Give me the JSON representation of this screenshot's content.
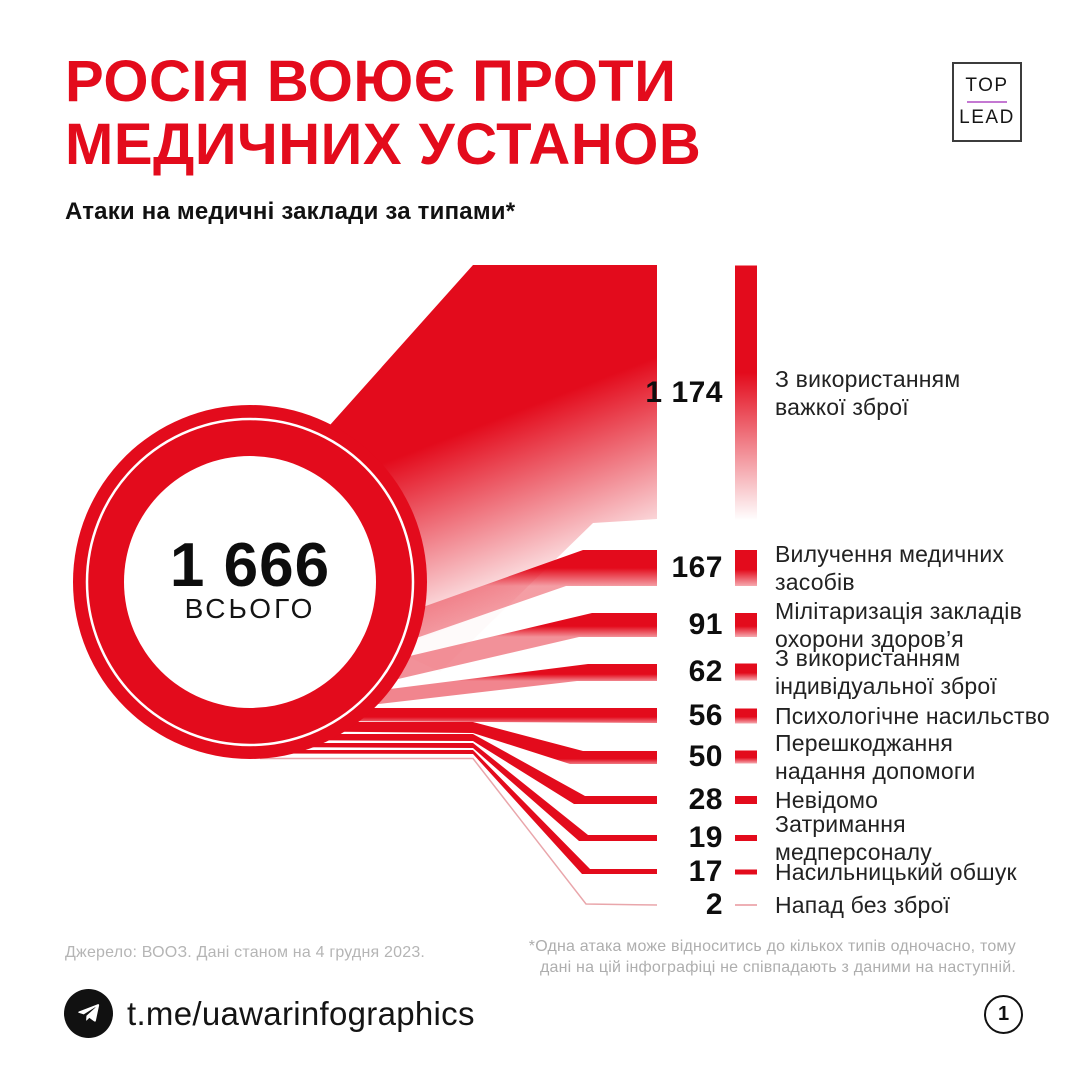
{
  "page": {
    "background": "#ffffff",
    "accent_red": "#e30b1c",
    "logo_divider_purple": "#c478d2"
  },
  "header": {
    "title_line1": "РОСІЯ ВОЮЄ ПРОТИ",
    "title_line2": "МЕДИЧНИХ УСТАНОВ",
    "subtitle": "Атаки на медичні заклади за типами*",
    "logo": {
      "top": "TOP",
      "bottom": "LEAD"
    }
  },
  "chart_data": {
    "type": "sankey-bar",
    "title": "РОСІЯ ВОЮЄ ПРОТИ МЕДИЧНИХ УСТАНОВ",
    "subtitle": "Атаки на медичні заклади за типами*",
    "total": {
      "value": 1666,
      "display": "1 666",
      "label": "ВСЬОГО"
    },
    "categories": [
      {
        "label": "З використанням важкої зброї",
        "value": 1174,
        "display": "1 174"
      },
      {
        "label": "Вилучення медичних засобів",
        "value": 167,
        "display": "167"
      },
      {
        "label": "Мілітаризація закладів охорони здоров’я",
        "value": 91,
        "display": "91"
      },
      {
        "label": "З використанням індивідуальної зброї",
        "value": 62,
        "display": "62"
      },
      {
        "label": "Психологічне насильство",
        "value": 56,
        "display": "56"
      },
      {
        "label": "Перешкоджання надання допомоги",
        "value": 50,
        "display": "50"
      },
      {
        "label": "Невідомо",
        "value": 28,
        "display": "28"
      },
      {
        "label": "Затримання медперсоналу",
        "value": 19,
        "display": "19"
      },
      {
        "label": "Насильницький обшук",
        "value": 17,
        "display": "17"
      },
      {
        "label": "Напад без зброї",
        "value": 2,
        "display": "2"
      }
    ]
  },
  "footer": {
    "source": "Джерело: ВООЗ. Дані станом на 4 грудня 2023.",
    "note_line1": "*Одна атака може відноситись до кількох типів одночасно, тому",
    "note_line2": "дані на цій інфографіці не співпадають з даними на наступній.",
    "telegram_handle": "t.me/uawarinfographics",
    "page_number": "1"
  }
}
